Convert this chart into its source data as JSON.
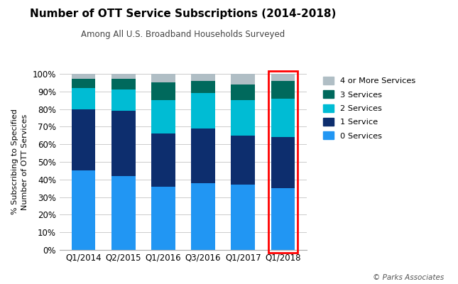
{
  "title": "Number of OTT Service Subscriptions (2014-2018)",
  "subtitle": "Among All U.S. Broadband Households Surveyed",
  "categories": [
    "Q1/2014",
    "Q2/2015",
    "Q1/2016",
    "Q3/2016",
    "Q1/2017",
    "Q1/2018"
  ],
  "series": {
    "0 Services": [
      45,
      42,
      36,
      38,
      37,
      35
    ],
    "1 Service": [
      35,
      37,
      30,
      31,
      28,
      29
    ],
    "2 Services": [
      12,
      12,
      19,
      20,
      20,
      22
    ],
    "3 Services": [
      5,
      6,
      10,
      7,
      9,
      10
    ],
    "4 or More Services": [
      3,
      3,
      5,
      4,
      6,
      4
    ]
  },
  "colors": {
    "0 Services": "#2196F3",
    "1 Service": "#0D2E6E",
    "2 Services": "#00BCD4",
    "3 Services": "#00695C",
    "4 or More Services": "#B0BEC5"
  },
  "legend_order": [
    "4 or More Services",
    "3 Services",
    "2 Services",
    "1 Service",
    "0 Services"
  ],
  "ylabel": "% Subscribing to Specified\nNumber of OTT Services",
  "ylim": [
    0,
    100
  ],
  "highlight_bar_index": 5,
  "highlight_color": "red",
  "copyright": "© Parks Associates",
  "background_color": "#ffffff"
}
